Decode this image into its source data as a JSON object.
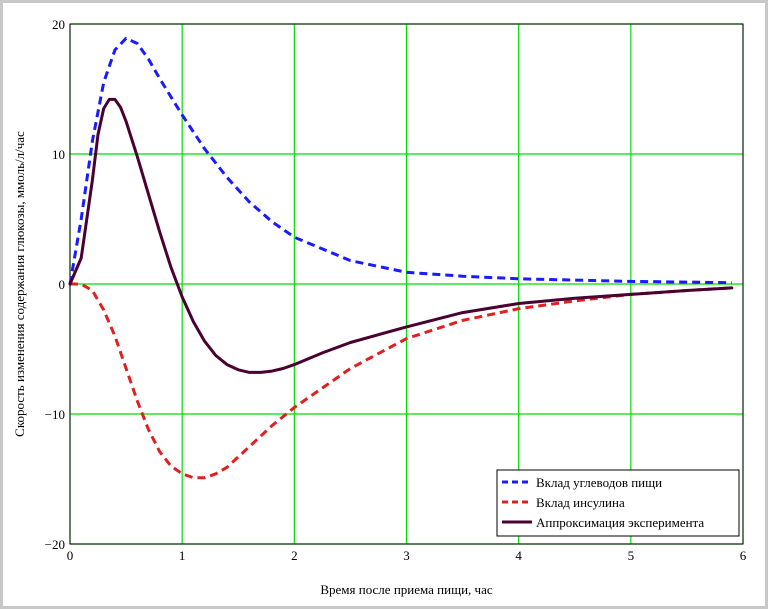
{
  "chart_data": {
    "type": "line",
    "xlabel": "Время после приема пищи, час",
    "ylabel": "Скорость изменения содержания глюкозы, ммоль/л/час",
    "xlim": [
      0,
      6
    ],
    "ylim": [
      -20,
      20
    ],
    "xticks": [
      "0",
      "1",
      "2",
      "3",
      "4",
      "5",
      "6"
    ],
    "yticks": [
      "20",
      "10",
      "0",
      "−10",
      "−20"
    ],
    "ytick_values": [
      20,
      10,
      0,
      -10,
      -20
    ],
    "grid": true,
    "grid_color": "#00dd00",
    "legend_position": "bottom-right",
    "series": [
      {
        "name": "Вклад углеводов пищи",
        "color": "#1a1aff",
        "style": "dashed",
        "x": [
          0,
          0.1,
          0.2,
          0.3,
          0.4,
          0.5,
          0.6,
          0.7,
          0.8,
          0.9,
          1.0,
          1.2,
          1.4,
          1.6,
          1.8,
          2.0,
          2.5,
          3.0,
          3.5,
          4.0,
          4.5,
          5.0,
          5.5,
          5.9
        ],
        "y": [
          0,
          5,
          11,
          15.5,
          18,
          18.9,
          18.5,
          17.3,
          15.8,
          14.4,
          13,
          10.4,
          8.2,
          6.3,
          4.8,
          3.6,
          1.8,
          0.9,
          0.6,
          0.4,
          0.3,
          0.2,
          0.15,
          0.1
        ]
      },
      {
        "name": "Вклад инсулина",
        "color": "#e02020",
        "style": "dashed",
        "x": [
          0,
          0.1,
          0.2,
          0.3,
          0.4,
          0.5,
          0.6,
          0.7,
          0.8,
          0.9,
          1.0,
          1.1,
          1.2,
          1.3,
          1.4,
          1.6,
          1.8,
          2.0,
          2.5,
          3.0,
          3.5,
          4.0,
          4.5,
          5.0,
          5.5,
          5.9
        ],
        "y": [
          0,
          0,
          -0.5,
          -2,
          -4,
          -6.5,
          -9,
          -11.2,
          -12.9,
          -14,
          -14.6,
          -14.9,
          -14.9,
          -14.6,
          -14.1,
          -12.5,
          -10.9,
          -9.5,
          -6.5,
          -4.2,
          -2.8,
          -1.9,
          -1.3,
          -0.8,
          -0.5,
          -0.3
        ]
      },
      {
        "name": "Аппроксимация эксперимента",
        "color": "#4a0030",
        "style": "solid",
        "x": [
          0,
          0.1,
          0.2,
          0.25,
          0.3,
          0.35,
          0.4,
          0.45,
          0.5,
          0.6,
          0.7,
          0.8,
          0.9,
          1.0,
          1.1,
          1.2,
          1.3,
          1.4,
          1.5,
          1.6,
          1.7,
          1.8,
          1.9,
          2.0,
          2.25,
          2.5,
          3.0,
          3.5,
          4.0,
          4.5,
          5.0,
          5.5,
          5.9
        ],
        "y": [
          0,
          2,
          8,
          11.5,
          13.5,
          14.2,
          14.2,
          13.6,
          12.5,
          9.8,
          6.9,
          4.0,
          1.3,
          -1.0,
          -2.9,
          -4.4,
          -5.5,
          -6.2,
          -6.6,
          -6.8,
          -6.8,
          -6.7,
          -6.5,
          -6.2,
          -5.3,
          -4.5,
          -3.3,
          -2.2,
          -1.5,
          -1.1,
          -0.8,
          -0.5,
          -0.3
        ]
      }
    ]
  }
}
